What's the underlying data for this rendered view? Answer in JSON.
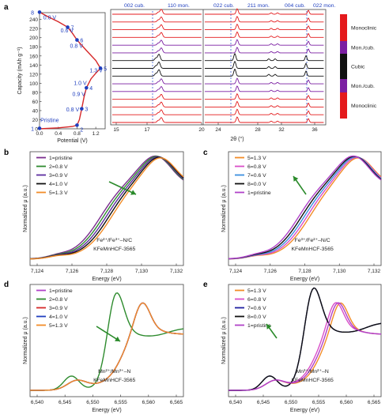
{
  "chart_data": [
    {
      "panel": "a",
      "type": "line",
      "left": {
        "xlabel": "Potential (V)",
        "ylabel": "Capacity (mAh g⁻¹)",
        "xticks": [
          "0.0",
          "0.4",
          "0.8",
          "1.2"
        ],
        "yticks": [
          "0",
          "20",
          "40",
          "60",
          "80",
          "100",
          "120",
          "140",
          "160",
          "180",
          "200",
          "220",
          "240"
        ],
        "xlim": [
          0.0,
          1.4
        ],
        "ylim": [
          0,
          255
        ],
        "points": [
          {
            "id": "1",
            "x": 0.0,
            "y": 1
          },
          {
            "id": "2",
            "x": 0.8,
            "y": 8
          },
          {
            "id": "3",
            "x": 0.9,
            "y": 44
          },
          {
            "id": "4",
            "x": 1.0,
            "y": 90
          },
          {
            "id": "5",
            "x": 1.3,
            "y": 133
          },
          {
            "id": "6",
            "x": 0.8,
            "y": 195
          },
          {
            "id": "7",
            "x": 0.6,
            "y": 223
          },
          {
            "id": "8",
            "x": 0.0,
            "y": 256
          }
        ],
        "curve": [
          [
            0.0,
            0
          ],
          [
            0.4,
            2
          ],
          [
            0.7,
            5
          ],
          [
            0.8,
            8
          ],
          [
            0.85,
            20
          ],
          [
            0.9,
            44
          ],
          [
            0.95,
            70
          ],
          [
            1.0,
            90
          ],
          [
            1.1,
            110
          ],
          [
            1.2,
            122
          ],
          [
            1.3,
            133
          ],
          [
            1.2,
            150
          ],
          [
            1.0,
            172
          ],
          [
            0.8,
            195
          ],
          [
            0.7,
            210
          ],
          [
            0.6,
            223
          ],
          [
            0.4,
            235
          ],
          [
            0.2,
            245
          ],
          [
            0.0,
            256
          ]
        ],
        "annotations": [
          {
            "text": "0.0 V",
            "x": 0.08,
            "y": 240
          },
          {
            "text": "0.6 V",
            "x": 0.45,
            "y": 212
          },
          {
            "text": "0.8 V",
            "x": 0.65,
            "y": 178
          },
          {
            "text": "1.3 V",
            "x": 1.07,
            "y": 124
          },
          {
            "text": "1.0 V",
            "x": 0.73,
            "y": 96
          },
          {
            "text": "0.9 V",
            "x": 0.7,
            "y": 72
          },
          {
            "text": "0.8 V",
            "x": 0.57,
            "y": 38
          },
          {
            "text": "Pristine",
            "x": 0.02,
            "y": 15
          }
        ]
      },
      "right": {
        "xlabel": "2θ (°)",
        "xticks": [
          "15",
          "17",
          "20",
          "24",
          "28",
          "32",
          "36"
        ],
        "top_labels": [
          "002 cub.",
          "110 mon.",
          "022 cub.",
          "211 mon.",
          "004 cub.",
          "022 mon."
        ],
        "phases": [
          {
            "label": "Monoclinic",
            "color": "#e41a1c"
          },
          {
            "label": "Mon./cub.",
            "color": "#7b1fa2"
          },
          {
            "label": "Cubic",
            "color": "#111111"
          },
          {
            "label": "Mon./cub.",
            "color": "#7b1fa2"
          },
          {
            "label": "Monoclinic",
            "color": "#e41a1c"
          }
        ],
        "traces": 15
      }
    },
    {
      "panel": "b",
      "type": "line",
      "xlabel": "Energy (eV)",
      "ylabel": "Normalized μ (a.u.)",
      "xticks": [
        "7,124",
        "7,126",
        "7,128",
        "7,130",
        "7,132"
      ],
      "xlim": [
        7124,
        7132
      ],
      "series": [
        {
          "name": "1=pristine",
          "color": "#7b2d8e"
        },
        {
          "name": "2=0.8 V",
          "color": "#2e8b2e"
        },
        {
          "name": "3=0.9 V",
          "color": "#5b2ca0"
        },
        {
          "name": "4=1.0 V",
          "color": "#111111"
        },
        {
          "name": "5=1.3 V",
          "color": "#f28c28"
        }
      ],
      "annotation": "Fe²⁺/Fe³⁺–N/C",
      "sample": "KFeMnHCF-3565"
    },
    {
      "panel": "c",
      "type": "line",
      "xlabel": "Energy (eV)",
      "ylabel": "Normalized μ (a.u.)",
      "xticks": [
        "7,124",
        "7,126",
        "7,128",
        "7,130",
        "7,132"
      ],
      "xlim": [
        7124,
        7132
      ],
      "series": [
        {
          "name": "5=1.3 V",
          "color": "#f28c28"
        },
        {
          "name": "6=0.8 V",
          "color": "#d94fc8"
        },
        {
          "name": "7=0.6 V",
          "color": "#3b8fe0"
        },
        {
          "name": "8=0.0 V",
          "color": "#111111"
        },
        {
          "name": "1=pristine",
          "color": "#b042c8"
        }
      ],
      "annotation": "Fe³⁺/Fe²⁺–N/C",
      "sample": "KFeMnHCF-3565"
    },
    {
      "panel": "d",
      "type": "line",
      "xlabel": "Energy (eV)",
      "ylabel": "Normalized μ (a.u.)",
      "xticks": [
        "6,540",
        "6,545",
        "6,550",
        "6,555",
        "6,560",
        "6,565"
      ],
      "xlim": [
        6540,
        6565
      ],
      "series": [
        {
          "name": "1=pristine",
          "color": "#b042c8"
        },
        {
          "name": "2=0.8 V",
          "color": "#2e8b2e"
        },
        {
          "name": "3=0.9 V",
          "color": "#d62728"
        },
        {
          "name": "4=1.0 V",
          "color": "#1f3fbf"
        },
        {
          "name": "5=1.3 V",
          "color": "#f28c28"
        }
      ],
      "annotation": "Mn²⁺/Mn³⁺–N",
      "sample": "KFeMnHCF-3565"
    },
    {
      "panel": "e",
      "type": "line",
      "xlabel": "Energy (eV)",
      "ylabel": "Normalized μ (a.u.)",
      "xticks": [
        "6,540",
        "6,545",
        "6,550",
        "6,555",
        "6,560",
        "6,565"
      ],
      "xlim": [
        6540,
        6565
      ],
      "series": [
        {
          "name": "5=1.3 V",
          "color": "#f28c28"
        },
        {
          "name": "6=0.8 V",
          "color": "#d94fc8"
        },
        {
          "name": "7=0.6 V",
          "color": "#1f1fa0"
        },
        {
          "name": "8=0.0 V",
          "color": "#111111"
        },
        {
          "name": "1=pristine",
          "color": "#b042c8"
        }
      ],
      "annotation": "Mn³⁺/Mn²⁺–N",
      "sample": "KFeMnHCF-3565"
    }
  ]
}
